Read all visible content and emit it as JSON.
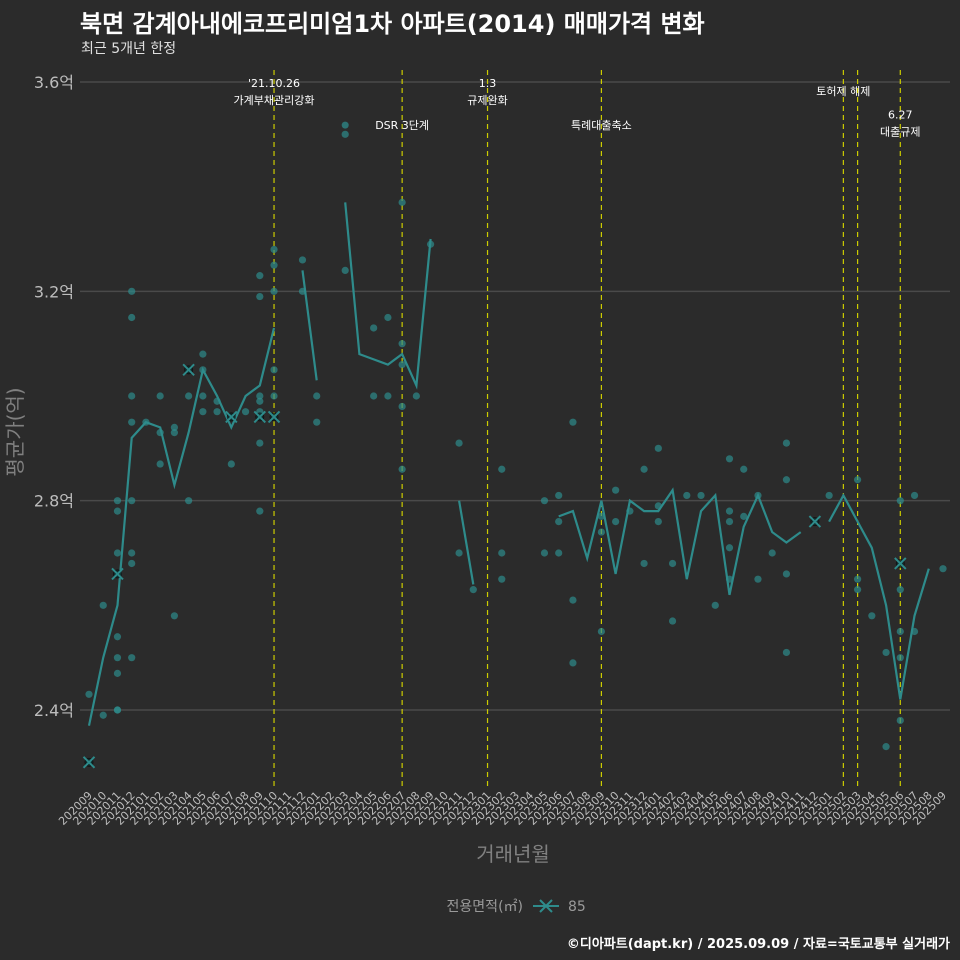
{
  "header": {
    "title": "북면 감계아내에코프리미엄1차 아파트(2014) 매매가격 변화",
    "subtitle": "최근 5개년 한정"
  },
  "footer": {
    "credit": "©디아파트(dapt.kr) / 2025.09.09 / 자료=국토교통부 실거래가"
  },
  "colors": {
    "background": "#2b2b2b",
    "grid": "#4a4a4a",
    "series": "#2e8b8b",
    "points": "#2e8b8b",
    "event_line": "#cccc00",
    "text": "#ffffff"
  },
  "chart_data": {
    "type": "line",
    "title": "북면 감계아내에코프리미엄1차 아파트(2014) 매매가격 변화",
    "xlabel": "거래년월",
    "ylabel": "평균가(억)",
    "ylim": [
      2.25,
      3.65
    ],
    "yticks": [
      {
        "value": 2.4,
        "label": "2.4억"
      },
      {
        "value": 2.8,
        "label": "2.8억"
      },
      {
        "value": 3.2,
        "label": "3.2억"
      },
      {
        "value": 3.6,
        "label": "3.6억"
      }
    ],
    "grid": true,
    "legend": {
      "title": "전용면적(㎡)",
      "position": "bottom",
      "entries": [
        "85"
      ]
    },
    "categories": [
      "202009",
      "202010",
      "202011",
      "202012",
      "202101",
      "202102",
      "202103",
      "202104",
      "202105",
      "202106",
      "202107",
      "202108",
      "202109",
      "202110",
      "202111",
      "202112",
      "202201",
      "202202",
      "202203",
      "202204",
      "202205",
      "202206",
      "202207",
      "202208",
      "202209",
      "202210",
      "202211",
      "202212",
      "202301",
      "202302",
      "202303",
      "202304",
      "202305",
      "202306",
      "202307",
      "202308",
      "202309",
      "202310",
      "202311",
      "202312",
      "202401",
      "202402",
      "202403",
      "202404",
      "202405",
      "202406",
      "202407",
      "202408",
      "202409",
      "202410",
      "202411",
      "202412",
      "202501",
      "202502",
      "202503",
      "202504",
      "202505",
      "202506",
      "202507",
      "202508",
      "202509"
    ],
    "series": [
      {
        "name": "85",
        "values": [
          2.37,
          2.5,
          2.6,
          2.92,
          2.95,
          2.94,
          2.83,
          2.93,
          3.05,
          3.0,
          2.94,
          3.0,
          3.02,
          3.13,
          null,
          3.24,
          3.03,
          null,
          3.37,
          3.08,
          3.07,
          3.06,
          3.08,
          3.02,
          3.3,
          null,
          2.8,
          2.64,
          null,
          null,
          null,
          null,
          null,
          2.77,
          2.78,
          2.69,
          2.8,
          2.66,
          2.8,
          2.78,
          2.78,
          2.82,
          2.65,
          2.78,
          2.81,
          2.62,
          2.75,
          2.81,
          2.74,
          2.72,
          2.74,
          null,
          2.76,
          2.81,
          2.76,
          2.71,
          2.6,
          2.42,
          2.58,
          2.67,
          null
        ]
      }
    ],
    "scatter": [
      [
        "202009",
        2.43
      ],
      [
        "202009",
        2.3
      ],
      [
        "202010",
        2.6
      ],
      [
        "202010",
        2.39
      ],
      [
        "202011",
        2.8
      ],
      [
        "202011",
        2.78
      ],
      [
        "202011",
        2.7
      ],
      [
        "202011",
        2.66
      ],
      [
        "202011",
        2.54
      ],
      [
        "202011",
        2.5
      ],
      [
        "202011",
        2.47
      ],
      [
        "202011",
        2.4
      ],
      [
        "202011",
        2.4
      ],
      [
        "202012",
        3.2
      ],
      [
        "202012",
        3.15
      ],
      [
        "202012",
        3.0
      ],
      [
        "202012",
        2.95
      ],
      [
        "202012",
        2.8
      ],
      [
        "202012",
        2.7
      ],
      [
        "202012",
        2.68
      ],
      [
        "202012",
        2.5
      ],
      [
        "202101",
        2.95
      ],
      [
        "202102",
        3.0
      ],
      [
        "202102",
        2.93
      ],
      [
        "202102",
        2.87
      ],
      [
        "202103",
        2.94
      ],
      [
        "202103",
        2.93
      ],
      [
        "202103",
        2.58
      ],
      [
        "202104",
        3.05
      ],
      [
        "202104",
        3.0
      ],
      [
        "202104",
        2.8
      ],
      [
        "202105",
        3.08
      ],
      [
        "202105",
        3.05
      ],
      [
        "202105",
        3.0
      ],
      [
        "202105",
        2.97
      ],
      [
        "202106",
        2.99
      ],
      [
        "202106",
        2.97
      ],
      [
        "202107",
        2.96
      ],
      [
        "202107",
        2.87
      ],
      [
        "202108",
        2.97
      ],
      [
        "202109",
        3.23
      ],
      [
        "202109",
        3.19
      ],
      [
        "202109",
        3.0
      ],
      [
        "202109",
        2.99
      ],
      [
        "202109",
        2.97
      ],
      [
        "202109",
        2.96
      ],
      [
        "202109",
        2.91
      ],
      [
        "202109",
        2.78
      ],
      [
        "202110",
        3.28
      ],
      [
        "202110",
        3.25
      ],
      [
        "202110",
        3.2
      ],
      [
        "202110",
        3.05
      ],
      [
        "202110",
        3.0
      ],
      [
        "202110",
        2.96
      ],
      [
        "202112",
        3.26
      ],
      [
        "202112",
        3.2
      ],
      [
        "202201",
        3.0
      ],
      [
        "202201",
        2.95
      ],
      [
        "202203",
        3.5
      ],
      [
        "202203",
        3.24
      ],
      [
        "202205",
        3.13
      ],
      [
        "202205",
        3.0
      ],
      [
        "202206",
        3.15
      ],
      [
        "202206",
        3.0
      ],
      [
        "202207",
        3.37
      ],
      [
        "202207",
        3.1
      ],
      [
        "202207",
        3.06
      ],
      [
        "202207",
        2.98
      ],
      [
        "202207",
        2.86
      ],
      [
        "202208",
        3.0
      ],
      [
        "202209",
        3.29
      ],
      [
        "202211",
        2.91
      ],
      [
        "202211",
        2.7
      ],
      [
        "202212",
        2.63
      ],
      [
        "202302",
        2.86
      ],
      [
        "202302",
        2.7
      ],
      [
        "202302",
        2.65
      ],
      [
        "202305",
        2.8
      ],
      [
        "202305",
        2.7
      ],
      [
        "202306",
        2.81
      ],
      [
        "202306",
        2.76
      ],
      [
        "202306",
        2.7
      ],
      [
        "202307",
        2.95
      ],
      [
        "202307",
        2.61
      ],
      [
        "202307",
        2.49
      ],
      [
        "202309",
        2.77
      ],
      [
        "202309",
        2.74
      ],
      [
        "202309",
        2.55
      ],
      [
        "202310",
        2.82
      ],
      [
        "202310",
        2.76
      ],
      [
        "202311",
        2.78
      ],
      [
        "202312",
        2.86
      ],
      [
        "202312",
        2.68
      ],
      [
        "202401",
        2.9
      ],
      [
        "202401",
        2.79
      ],
      [
        "202401",
        2.76
      ],
      [
        "202402",
        2.68
      ],
      [
        "202402",
        2.57
      ],
      [
        "202403",
        2.81
      ],
      [
        "202404",
        2.81
      ],
      [
        "202405",
        2.6
      ],
      [
        "202406",
        2.88
      ],
      [
        "202406",
        2.78
      ],
      [
        "202406",
        2.76
      ],
      [
        "202406",
        2.71
      ],
      [
        "202406",
        2.65
      ],
      [
        "202407",
        2.86
      ],
      [
        "202407",
        2.77
      ],
      [
        "202408",
        2.81
      ],
      [
        "202408",
        2.65
      ],
      [
        "202409",
        2.7
      ],
      [
        "202410",
        2.91
      ],
      [
        "202410",
        2.84
      ],
      [
        "202410",
        2.66
      ],
      [
        "202410",
        2.51
      ],
      [
        "202412",
        2.76
      ],
      [
        "202501",
        2.81
      ],
      [
        "202503",
        2.84
      ],
      [
        "202503",
        2.65
      ],
      [
        "202503",
        2.63
      ],
      [
        "202504",
        2.58
      ],
      [
        "202505",
        2.51
      ],
      [
        "202505",
        2.33
      ],
      [
        "202506",
        2.8
      ],
      [
        "202506",
        2.68
      ],
      [
        "202506",
        2.63
      ],
      [
        "202506",
        2.55
      ],
      [
        "202506",
        2.5
      ],
      [
        "202506",
        2.38
      ],
      [
        "202507",
        2.81
      ],
      [
        "202507",
        2.55
      ],
      [
        "202509",
        2.67
      ]
    ],
    "markers_x": [
      [
        "202009",
        2.3
      ],
      [
        "202011",
        2.66
      ],
      [
        "202104",
        3.05
      ],
      [
        "202107",
        2.96
      ],
      [
        "202109",
        2.96
      ],
      [
        "202110",
        2.96
      ],
      [
        "202412",
        2.76
      ],
      [
        "202506",
        2.68
      ]
    ],
    "events": [
      {
        "x": "202110",
        "lines": [
          "'21.10.26",
          "가계부채관리강화"
        ],
        "label_value": 3.59
      },
      {
        "x": "202207",
        "lines": [
          "DSR 3단계"
        ],
        "label_value": 3.51,
        "dot": true
      },
      {
        "x": "202301",
        "lines": [
          "1.3",
          "규제완화"
        ],
        "label_value": 3.59
      },
      {
        "x": "202309",
        "lines": [
          "특례대출축소"
        ],
        "label_value": 3.51
      },
      {
        "x": "202502",
        "lines": [
          "토허제 해제"
        ],
        "label_value": 3.575
      },
      {
        "x": "202503",
        "lines": [],
        "label_value": null
      },
      {
        "x": "202506",
        "lines": [
          "6.27",
          "대출규제"
        ],
        "label_value": 3.53
      }
    ]
  }
}
